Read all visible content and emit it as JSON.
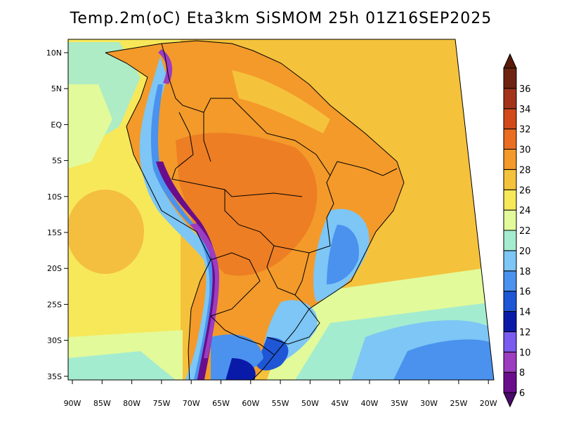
{
  "title": "Temp.2m(oC) Eta3km SiSMOM 25h 01Z16SEP2025",
  "map": {
    "lat_ticks": [
      "10N",
      "5N",
      "EQ",
      "5S",
      "10S",
      "15S",
      "20S",
      "25S",
      "30S",
      "35S"
    ],
    "lon_ticks": [
      "90W",
      "85W",
      "80W",
      "75W",
      "70W",
      "65W",
      "60W",
      "55W",
      "50W",
      "45W",
      "40W",
      "35W",
      "30W",
      "25W",
      "20W"
    ],
    "extent": {
      "lon_min": -90,
      "lon_max": -20,
      "lat_min": -37,
      "lat_max": 12
    },
    "variable": "Temperature at 2m (oC)"
  },
  "colorbar": {
    "labels": [
      "36",
      "34",
      "32",
      "30",
      "28",
      "26",
      "24",
      "22",
      "20",
      "18",
      "16",
      "14",
      "12",
      "10",
      "8",
      "6"
    ],
    "bins": [
      {
        "from": 6,
        "to": 8,
        "color": "#6a0d8c"
      },
      {
        "from": 8,
        "to": 10,
        "color": "#9c3cc0"
      },
      {
        "from": 10,
        "to": 12,
        "color": "#7a5cf0"
      },
      {
        "from": 12,
        "to": 14,
        "color": "#0a1aa8"
      },
      {
        "from": 14,
        "to": 16,
        "color": "#1f56d6"
      },
      {
        "from": 16,
        "to": 18,
        "color": "#4a92ee"
      },
      {
        "from": 18,
        "to": 20,
        "color": "#7dc6f5"
      },
      {
        "from": 20,
        "to": 22,
        "color": "#a4ecd0"
      },
      {
        "from": 22,
        "to": 24,
        "color": "#e2fa9a"
      },
      {
        "from": 24,
        "to": 26,
        "color": "#f7e85a"
      },
      {
        "from": 26,
        "to": 28,
        "color": "#f5c23c"
      },
      {
        "from": 28,
        "to": 30,
        "color": "#f39a2a"
      },
      {
        "from": 30,
        "to": 32,
        "color": "#ea6d22"
      },
      {
        "from": 32,
        "to": 34,
        "color": "#d2491a"
      },
      {
        "from": 34,
        "to": 36,
        "color": "#a3341a"
      },
      {
        "from": 36,
        "to": 38,
        "color": "#6e2410"
      }
    ],
    "below_color": "#4a0a6a",
    "above_color": "#5a1a08"
  }
}
